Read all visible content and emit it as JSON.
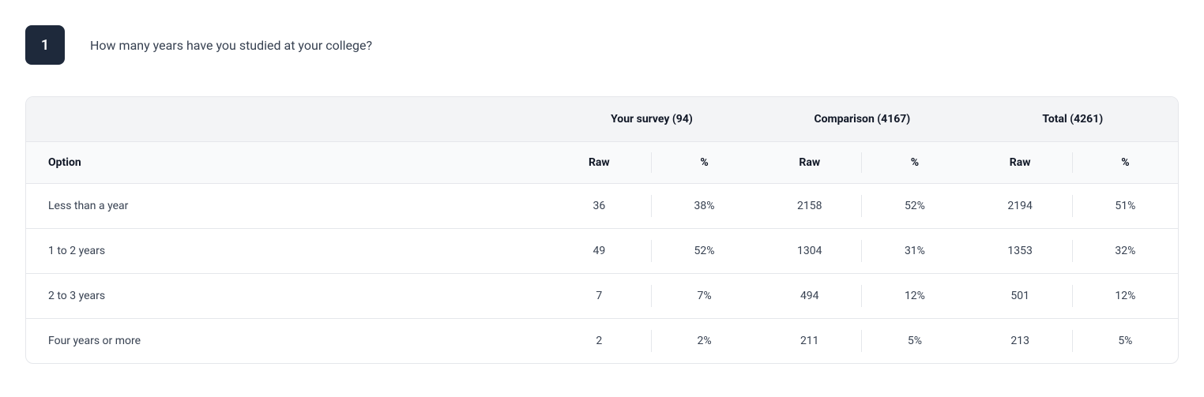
{
  "question": {
    "number": "1",
    "text": "How many years have you studied at your college?"
  },
  "colors": {
    "badge_bg": "#1e293b",
    "badge_fg": "#ffffff",
    "header_bg": "#f3f4f6",
    "subheader_bg": "#f9fafb",
    "border": "#e5e7eb",
    "text": "#374151"
  },
  "table": {
    "option_header": "Option",
    "sub_headers": {
      "raw": "Raw",
      "pct": "%"
    },
    "groups": [
      {
        "label": "Your survey (94)"
      },
      {
        "label": "Comparison (4167)"
      },
      {
        "label": "Total (4261)"
      }
    ],
    "rows": [
      {
        "option": "Less than a year",
        "cells": [
          {
            "raw": "36",
            "pct": "38%"
          },
          {
            "raw": "2158",
            "pct": "52%"
          },
          {
            "raw": "2194",
            "pct": "51%"
          }
        ]
      },
      {
        "option": "1 to 2 years",
        "cells": [
          {
            "raw": "49",
            "pct": "52%"
          },
          {
            "raw": "1304",
            "pct": "31%"
          },
          {
            "raw": "1353",
            "pct": "32%"
          }
        ]
      },
      {
        "option": "2 to 3 years",
        "cells": [
          {
            "raw": "7",
            "pct": "7%"
          },
          {
            "raw": "494",
            "pct": "12%"
          },
          {
            "raw": "501",
            "pct": "12%"
          }
        ]
      },
      {
        "option": "Four years or more",
        "cells": [
          {
            "raw": "2",
            "pct": "2%"
          },
          {
            "raw": "211",
            "pct": "5%"
          },
          {
            "raw": "213",
            "pct": "5%"
          }
        ]
      }
    ]
  }
}
